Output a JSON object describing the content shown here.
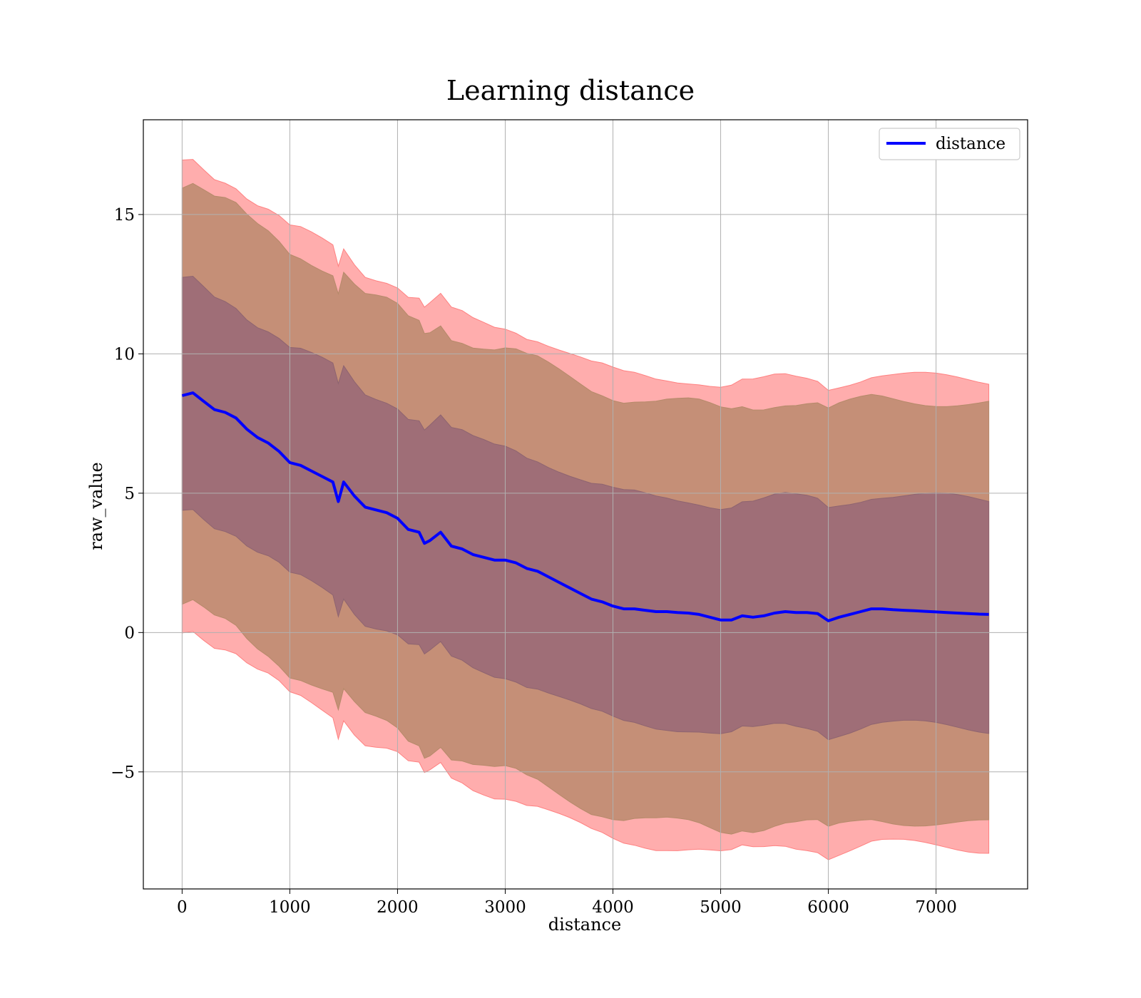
{
  "chart_data": {
    "type": "area",
    "title": "Learning distance",
    "xlabel": "distance",
    "ylabel": "raw_value",
    "xlim": [
      -360,
      7850
    ],
    "ylim": [
      -9.2,
      18.4
    ],
    "xticks": [
      0,
      1000,
      2000,
      3000,
      4000,
      5000,
      6000,
      7000
    ],
    "yticks": [
      -5,
      0,
      5,
      10,
      15
    ],
    "ytick_labels": [
      "−5",
      "0",
      "5",
      "10",
      "15"
    ],
    "grid": true,
    "legend": {
      "position": "top-right",
      "entries": [
        "distance"
      ]
    },
    "colors": {
      "line": "#0000ff",
      "band_outer": "#ff9999",
      "band_middle": "#c58f77",
      "band_inner": "#9f6e77",
      "grid": "#b0b0b0"
    },
    "series": [
      {
        "name": "distance",
        "x": [
          0,
          100,
          200,
          300,
          400,
          500,
          600,
          700,
          800,
          900,
          1000,
          1100,
          1200,
          1300,
          1400,
          1450,
          1500,
          1600,
          1700,
          1800,
          1900,
          2000,
          2100,
          2200,
          2250,
          2300,
          2400,
          2500,
          2600,
          2700,
          2800,
          2900,
          3000,
          3100,
          3200,
          3300,
          3400,
          3500,
          3600,
          3700,
          3800,
          3900,
          4000,
          4100,
          4200,
          4300,
          4400,
          4500,
          4600,
          4700,
          4800,
          4900,
          5000,
          5100,
          5200,
          5300,
          5400,
          5500,
          5600,
          5700,
          5800,
          5900,
          6000,
          6100,
          6200,
          6300,
          6400,
          6500,
          6600,
          6700,
          6800,
          6900,
          7000,
          7100,
          7200,
          7300,
          7400,
          7490
        ],
        "values": [
          8.5,
          8.6,
          8.3,
          8.0,
          7.9,
          7.7,
          7.3,
          7.0,
          6.8,
          6.5,
          6.1,
          6.0,
          5.8,
          5.6,
          5.4,
          4.7,
          5.4,
          4.9,
          4.5,
          4.4,
          4.3,
          4.1,
          3.7,
          3.6,
          3.2,
          3.3,
          3.6,
          3.1,
          3.0,
          2.8,
          2.7,
          2.6,
          2.6,
          2.5,
          2.3,
          2.2,
          2.0,
          1.8,
          1.6,
          1.4,
          1.2,
          1.1,
          0.95,
          0.85,
          0.85,
          0.8,
          0.75,
          0.75,
          0.72,
          0.7,
          0.65,
          0.55,
          0.45,
          0.45,
          0.6,
          0.55,
          0.6,
          0.7,
          0.75,
          0.72,
          0.72,
          0.68,
          0.42,
          0.55,
          0.65,
          0.75,
          0.85,
          0.85,
          0.82,
          0.8,
          0.78,
          0.76,
          0.74,
          0.72,
          0.7,
          0.68,
          0.66,
          0.65
        ]
      }
    ],
    "bands": [
      {
        "sigma": 3,
        "lower_at_start": 0.1,
        "upper_at_start": 16.9
      },
      {
        "sigma": 2.5,
        "lower_at_start": 0.9,
        "upper_at_start": 16.1
      },
      {
        "sigma": 1,
        "lower_at_start": 4.3,
        "upper_at_start": 12.6
      }
    ],
    "band_halfwidth_start": 8.4,
    "band_halfwidth_end": 8.4
  }
}
